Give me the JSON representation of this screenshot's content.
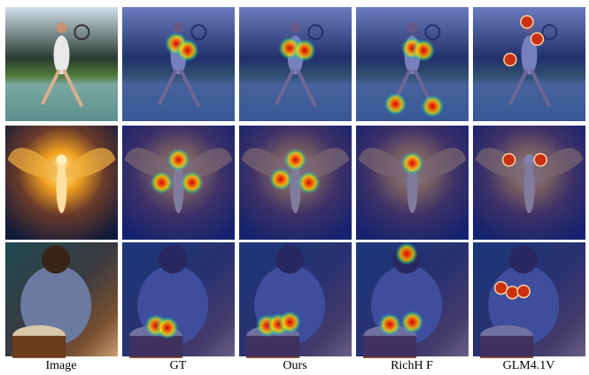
{
  "columns": [
    "Image",
    "GT",
    "Ours",
    "RichH F",
    "GLM4.1V"
  ]
}
